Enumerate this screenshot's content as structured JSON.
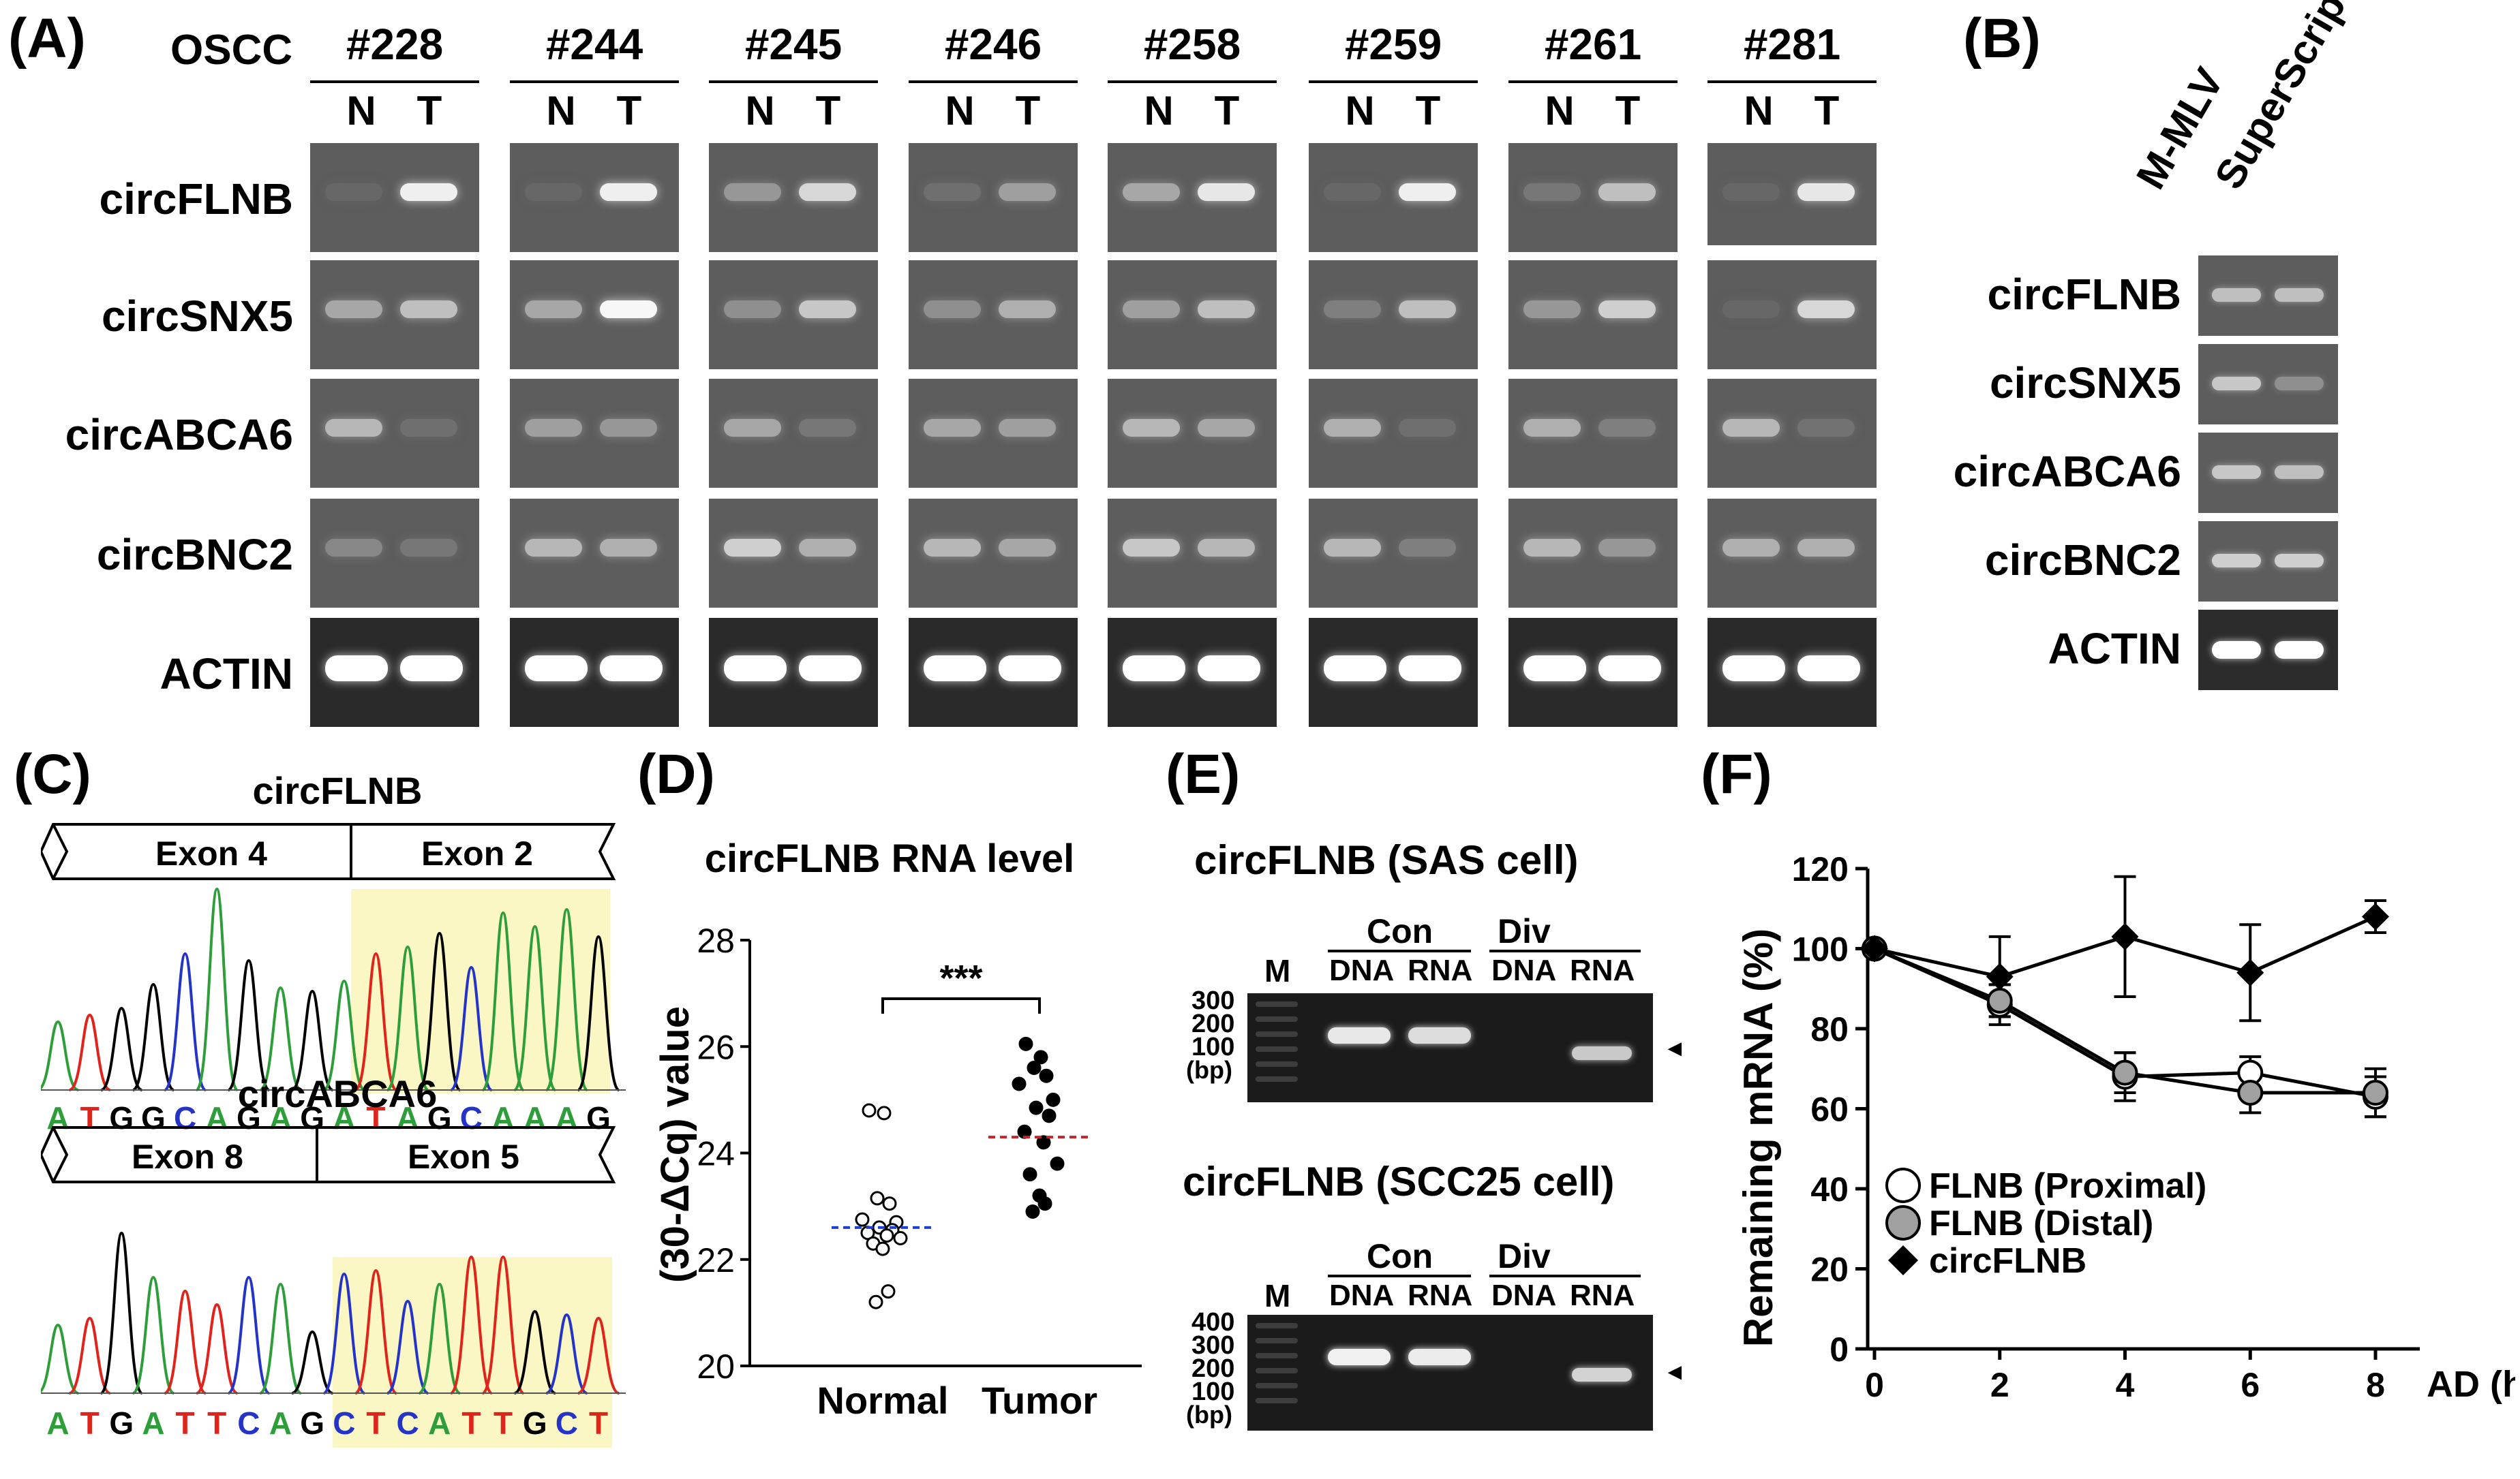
{
  "panels": {
    "a": "(A)",
    "b": "(B)",
    "c": "(C)",
    "d": "(D)",
    "e": "(E)",
    "f": "(F)"
  },
  "panel_a": {
    "oscc_label": "OSCC",
    "samples": [
      "#228",
      "#244",
      "#245",
      "#246",
      "#258",
      "#259",
      "#261",
      "#281"
    ],
    "lane_n": "N",
    "lane_t": "T",
    "rows": [
      "circFLNB",
      "circSNX5",
      "circABCA6",
      "circBNC2",
      "ACTIN"
    ]
  },
  "panel_b": {
    "columns": [
      "M-MLV",
      "SuperScript"
    ],
    "rows": [
      "circFLNB",
      "circSNX5",
      "circABCA6",
      "circBNC2",
      "ACTIN"
    ]
  },
  "panel_c": {
    "top_title": "circFLNB",
    "top_exon_left": "Exon 4",
    "top_exon_right": "Exon 2",
    "top_sequence": [
      "A",
      "T",
      "G",
      "G",
      "C",
      "A",
      "G",
      "A",
      "G",
      "A",
      "T",
      "A",
      "G",
      "C",
      "A",
      "A",
      "A",
      "G"
    ],
    "bottom_title": "circABCA6",
    "bottom_exon_left": "Exon 8",
    "bottom_exon_right": "Exon 5",
    "bottom_sequence": [
      "A",
      "T",
      "G",
      "A",
      "T",
      "T",
      "C",
      "A",
      "G",
      "C",
      "T",
      "C",
      "A",
      "T",
      "T",
      "G",
      "C",
      "T"
    ],
    "base_colors": {
      "A": "#2e9e3a",
      "T": "#e0241b",
      "G": "#000000",
      "C": "#2433c8"
    }
  },
  "panel_d": {
    "chart_data": {
      "type": "scatter",
      "title": "circFLNB RNA level",
      "ylabel": "(30-ΔCq) value",
      "categories": [
        "Normal",
        "Tumor"
      ],
      "ylim": [
        20,
        28
      ],
      "yticks": [
        "20",
        "22",
        "24",
        "26",
        "28"
      ],
      "significance": "***",
      "series": [
        {
          "name": "Normal",
          "marker": "open",
          "mean": 22.6,
          "mean_color": "#1f3fd1",
          "values": [
            24.8,
            24.75,
            23.15,
            23.05,
            22.75,
            22.7,
            22.6,
            22.55,
            22.5,
            22.45,
            22.4,
            22.3,
            22.2,
            21.4,
            21.2
          ]
        },
        {
          "name": "Tumor",
          "marker": "filled",
          "mean": 24.3,
          "mean_color": "#c0272d",
          "values": [
            26.05,
            25.8,
            25.6,
            25.45,
            25.3,
            25.0,
            24.85,
            24.7,
            24.4,
            24.2,
            23.8,
            23.6,
            23.2,
            23.05,
            22.9
          ]
        }
      ]
    }
  },
  "panel_e": {
    "top_title": "circFLNB (SAS cell)",
    "bottom_title": "circFLNB (SCC25 cell)",
    "marker": "M",
    "con": "Con",
    "div": "Div",
    "dna": "DNA",
    "rna": "RNA",
    "top_ladder": [
      "300",
      "200",
      "100",
      "(bp)"
    ],
    "bottom_ladder": [
      "400",
      "300",
      "200",
      "100",
      "(bp)"
    ],
    "arrow": "◄"
  },
  "panel_f": {
    "chart_data": {
      "type": "line",
      "xlabel": "AD (h)",
      "ylabel": "Remaining mRNA (%)",
      "x": [
        0,
        2,
        4,
        6,
        8
      ],
      "xticks": [
        "0",
        "2",
        "4",
        "6",
        "8"
      ],
      "yticks": [
        "0",
        "20",
        "40",
        "60",
        "80",
        "100",
        "120"
      ],
      "ylim": [
        0,
        120
      ],
      "series": [
        {
          "name": "FLNB (Proximal)",
          "marker": "open-circle",
          "values": [
            100,
            86,
            68,
            69,
            63
          ],
          "err": [
            0,
            5,
            6,
            4,
            5
          ]
        },
        {
          "name": "FLNB (Distal)",
          "marker": "gray-circle",
          "values": [
            100,
            87,
            69,
            64,
            64
          ],
          "err": [
            0,
            4,
            5,
            5,
            6
          ]
        },
        {
          "name": "circFLNB",
          "marker": "black-diamond",
          "values": [
            100,
            93,
            103,
            94,
            108
          ],
          "err": [
            0,
            10,
            15,
            12,
            4
          ]
        }
      ]
    }
  }
}
